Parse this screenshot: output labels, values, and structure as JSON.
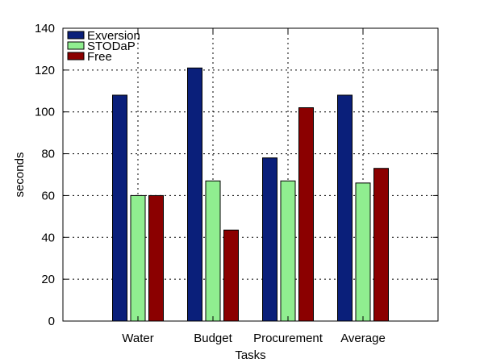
{
  "chart_data": {
    "type": "bar",
    "title": "",
    "xlabel": "Tasks",
    "ylabel": "seconds",
    "categories": [
      "Water",
      "Budget",
      "Procurement",
      "Average"
    ],
    "series": [
      {
        "name": "Exversion",
        "values": [
          108,
          121,
          78,
          108
        ],
        "color": "#0a1f7a"
      },
      {
        "name": "STODaP",
        "values": [
          60,
          67,
          67,
          66
        ],
        "color": "#90ee90"
      },
      {
        "name": "Free",
        "values": [
          60,
          43.5,
          102,
          73
        ],
        "color": "#8b0000"
      }
    ],
    "ylim": [
      0,
      140
    ],
    "yticks": [
      0,
      20,
      40,
      60,
      80,
      100,
      120,
      140
    ],
    "grid": true,
    "legend_position": "top-left"
  }
}
